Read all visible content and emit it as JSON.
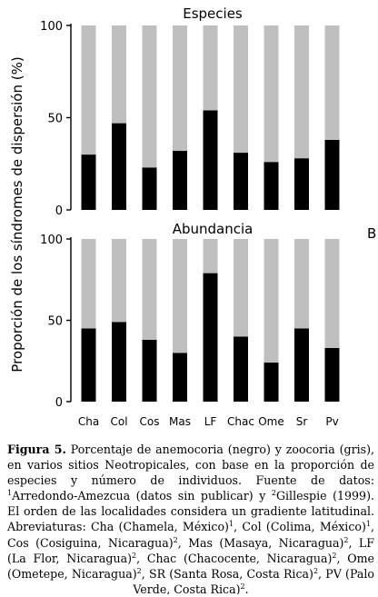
{
  "figure": {
    "y_axis_label": "Proporción de los síndromes de dispersión (%)",
    "panel_letter": "B",
    "colors": {
      "anemocoria": "#000000",
      "zoocoria": "#bfbfbf"
    }
  },
  "chart_data": [
    {
      "type": "bar",
      "stacked": true,
      "title": "Especies",
      "categories": [
        "Cha",
        "Col",
        "Cos",
        "Mas",
        "LF",
        "Chac",
        "Ome",
        "Sr",
        "Pv"
      ],
      "series": [
        {
          "name": "anemocoria",
          "color": "#000000",
          "values": [
            30,
            47,
            23,
            32,
            54,
            31,
            26,
            28,
            38
          ]
        },
        {
          "name": "zoocoria",
          "color": "#bfbfbf",
          "values": [
            70,
            53,
            77,
            68,
            46,
            69,
            74,
            72,
            62
          ]
        }
      ],
      "ylim": [
        0,
        100
      ],
      "yticks": [
        0,
        50,
        100
      ],
      "show_x_tick_labels": false
    },
    {
      "type": "bar",
      "stacked": true,
      "title": "Abundancia",
      "categories": [
        "Cha",
        "Col",
        "Cos",
        "Mas",
        "LF",
        "Chac",
        "Ome",
        "Sr",
        "Pv"
      ],
      "series": [
        {
          "name": "anemocoria",
          "color": "#000000",
          "values": [
            45,
            49,
            38,
            30,
            79,
            40,
            24,
            45,
            33
          ]
        },
        {
          "name": "zoocoria",
          "color": "#bfbfbf",
          "values": [
            55,
            51,
            62,
            70,
            21,
            60,
            76,
            55,
            67
          ]
        }
      ],
      "ylim": [
        0,
        100
      ],
      "yticks": [
        0,
        50,
        100
      ],
      "show_x_tick_labels": true
    }
  ],
  "caption": {
    "label": "Figura 5.",
    "body_html": " Porcentaje de anemocoria (negro) y zoocoria (gris), en varios sitios Neotropicales, con base en la proporción de especies y número de individuos. Fuente de datos: <sup>1</sup>Arredondo-Amezcua (datos sin publicar) y <sup>2</sup>Gillespie (1999). El orden de las localidades considera un gradiente latitudinal. Abreviaturas: Cha (Chamela, México)<sup>1</sup>, Col (Colima, México)<sup>1</sup>, Cos (Cosiguina, Nicaragua)<sup>2</sup>, Mas (Masaya, Nicaragua)<sup>2</sup>, LF (La Flor, Nicaragua)<sup>2</sup>, Chac (Chacocente, Nicaragua)<sup>2</sup>, Ome (Ometepe, Nicaragua)<sup>2</sup>, SR (Santa Rosa, Costa Rica)<sup>2</sup>, PV (Palo Verde, Costa Rica)<sup>2</sup>."
  }
}
